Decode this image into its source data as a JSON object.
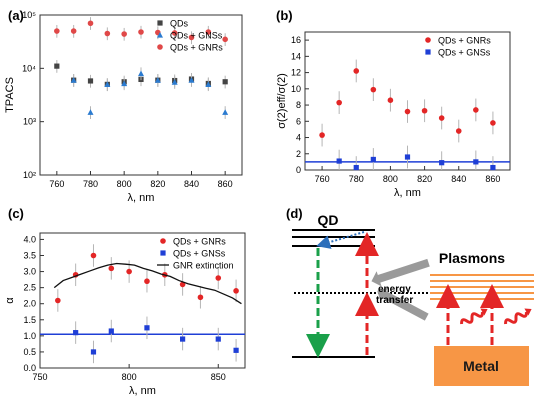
{
  "panels": {
    "a": {
      "label": "(a)"
    },
    "b": {
      "label": "(b)"
    },
    "c": {
      "label": "(c)"
    },
    "d": {
      "label": "(d)"
    }
  },
  "diagram": {
    "qd_label": "QD",
    "plasmons_label": "Plasmons",
    "energy_transfer_line1": "energy",
    "energy_transfer_line2": "transfer",
    "metal_label": "Metal"
  },
  "colors": {
    "qds": "#444444",
    "gnss": "#2b7bd0",
    "gnrs_a": "#e04848",
    "gnrs": "#e32626",
    "gnss_b": "#1f3fd6",
    "ref_line": "#1f3fd6",
    "extinction": "#111111",
    "metal": "#f79645",
    "plasmon_lines": "#f79645",
    "green_arrow": "#1aa04a",
    "red_arrow": "#e32626",
    "dotted_blue": "#2c6fbb",
    "grey_arrow": "#9a9a9a"
  },
  "chart_data": [
    {
      "id": "a",
      "type": "scatter",
      "xlabel": "λ, nm",
      "ylabel": "TPACS",
      "xlim": [
        750,
        870
      ],
      "ylim": [
        100,
        100000
      ],
      "log_y": true,
      "x_ticks": [
        "760",
        "780",
        "800",
        "820",
        "840",
        "860"
      ],
      "y_ticks": [
        "10²",
        "10³",
        "10⁴",
        "10⁵"
      ],
      "legend_position": "top-right",
      "series": [
        {
          "name": "QDs",
          "marker": "square",
          "x": [
            760,
            770,
            780,
            790,
            800,
            810,
            820,
            830,
            840,
            850,
            860
          ],
          "y": [
            11000,
            6000,
            5800,
            5000,
            5600,
            6200,
            6000,
            5900,
            6300,
            5200,
            5600
          ]
        },
        {
          "name": "QDs + GNSs",
          "marker": "triangle",
          "x": [
            770,
            780,
            790,
            800,
            810,
            820,
            830,
            840,
            850,
            860
          ],
          "y": [
            6000,
            1500,
            5000,
            5200,
            8000,
            6000,
            5500,
            6000,
            5000,
            1500
          ]
        },
        {
          "name": "QDs + GNRs",
          "marker": "circle",
          "x": [
            760,
            770,
            780,
            790,
            800,
            810,
            820,
            830,
            840,
            850,
            860
          ],
          "y": [
            50000,
            50000,
            70000,
            45000,
            44000,
            48000,
            47000,
            46000,
            38000,
            48000,
            35000
          ]
        }
      ]
    },
    {
      "id": "b",
      "type": "scatter",
      "xlabel": "λ, nm",
      "ylabel": "σ(2)eff/σ(2)",
      "xlim": [
        750,
        870
      ],
      "ylim": [
        0,
        17
      ],
      "x_ticks": [
        "760",
        "780",
        "800",
        "820",
        "840",
        "860"
      ],
      "y_ticks": [
        "0",
        "2",
        "4",
        "6",
        "8",
        "10",
        "12",
        "14",
        "16"
      ],
      "reference_line": 1.0,
      "legend_position": "top-right",
      "series": [
        {
          "name": "QDs + GNRs",
          "marker": "circle",
          "x": [
            760,
            770,
            780,
            790,
            800,
            810,
            820,
            830,
            840,
            850,
            860
          ],
          "y": [
            4.3,
            8.3,
            12.2,
            9.9,
            8.6,
            7.2,
            7.3,
            6.4,
            4.8,
            7.4,
            5.8
          ]
        },
        {
          "name": "QDs + GNSs",
          "marker": "square",
          "x": [
            770,
            780,
            790,
            810,
            830,
            850,
            860
          ],
          "y": [
            1.1,
            0.3,
            1.3,
            1.6,
            0.9,
            1.0,
            0.3
          ]
        }
      ]
    },
    {
      "id": "c",
      "type": "scatter",
      "xlabel": "λ, nm",
      "ylabel": "α",
      "xlim": [
        750,
        865
      ],
      "ylim": [
        0,
        4.2
      ],
      "x_ticks": [
        "750",
        "800",
        "850"
      ],
      "y_ticks": [
        "0.0",
        "0.5",
        "1.0",
        "1.5",
        "2.0",
        "2.5",
        "3.0",
        "3.5",
        "4.0"
      ],
      "reference_line": 1.05,
      "legend_position": "top-right",
      "series": [
        {
          "name": "QDs + GNRs",
          "marker": "circle",
          "x": [
            760,
            770,
            780,
            790,
            800,
            810,
            820,
            830,
            840,
            850,
            860
          ],
          "y": [
            2.1,
            2.9,
            3.5,
            3.1,
            3.0,
            2.7,
            2.9,
            2.6,
            2.2,
            2.8,
            2.4
          ]
        },
        {
          "name": "QDs + GNSs",
          "marker": "square",
          "x": [
            770,
            780,
            790,
            810,
            830,
            850,
            860
          ],
          "y": [
            1.1,
            0.5,
            1.15,
            1.25,
            0.9,
            0.9,
            0.55
          ]
        },
        {
          "name": "GNR extinction",
          "marker": "line",
          "x": [
            758,
            763,
            768,
            773,
            778,
            783,
            788,
            793,
            798,
            803,
            808,
            813,
            818,
            823,
            828,
            833,
            838,
            843,
            848,
            853,
            858,
            863
          ],
          "y": [
            2.5,
            2.72,
            2.82,
            2.92,
            3.02,
            3.12,
            3.2,
            3.25,
            3.23,
            3.2,
            3.1,
            3.02,
            2.92,
            2.85,
            2.72,
            2.62,
            2.55,
            2.48,
            2.42,
            2.3,
            2.18,
            2.0
          ]
        }
      ]
    }
  ]
}
